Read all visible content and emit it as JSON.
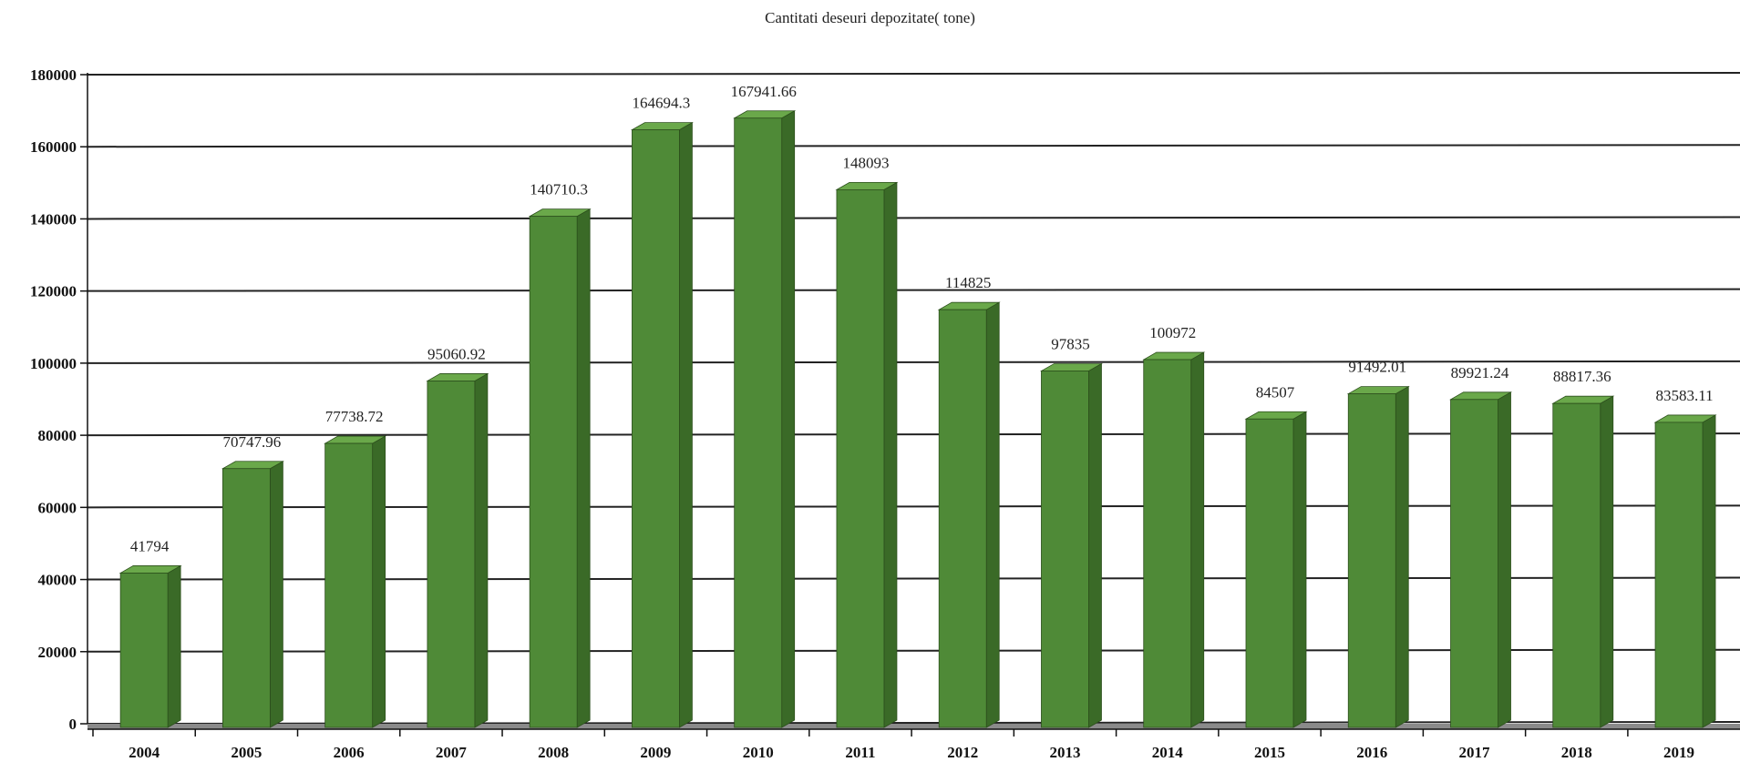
{
  "chart_data": {
    "type": "bar",
    "title": "Cantitati deseuri depozitate( tone)",
    "xlabel": "",
    "ylabel": "",
    "categories": [
      "2004",
      "2005",
      "2006",
      "2007",
      "2008",
      "2009",
      "2010",
      "2011",
      "2012",
      "2013",
      "2014",
      "2015",
      "2016",
      "2017",
      "2018",
      "2019"
    ],
    "values": [
      41794,
      70747.96,
      77738.72,
      95060.92,
      140710.3,
      164694.3,
      167941.66,
      148093,
      114825,
      97835,
      100972,
      84507,
      91492.01,
      89921.24,
      88817.36,
      83583.11
    ],
    "data_labels": [
      "41794",
      "70747.96",
      "77738.72",
      "95060.92",
      "140710.3",
      "164694.3",
      "167941.66",
      "148093",
      "114825",
      "97835",
      "100972",
      "84507",
      "91492.01",
      "89921.24",
      "88817.36",
      "83583.11"
    ],
    "y_ticks": [
      "0",
      "20000",
      "40000",
      "60000",
      "80000",
      "100000",
      "120000",
      "140000",
      "160000",
      "180000"
    ],
    "ylim": [
      0,
      180000
    ],
    "grid": true,
    "legend": "none",
    "colors": {
      "bar_front": "#4f8a37",
      "bar_top": "#6aa84a",
      "bar_side": "#3a6a27",
      "grid": "#222222",
      "floor": "#8a8a8a"
    }
  }
}
